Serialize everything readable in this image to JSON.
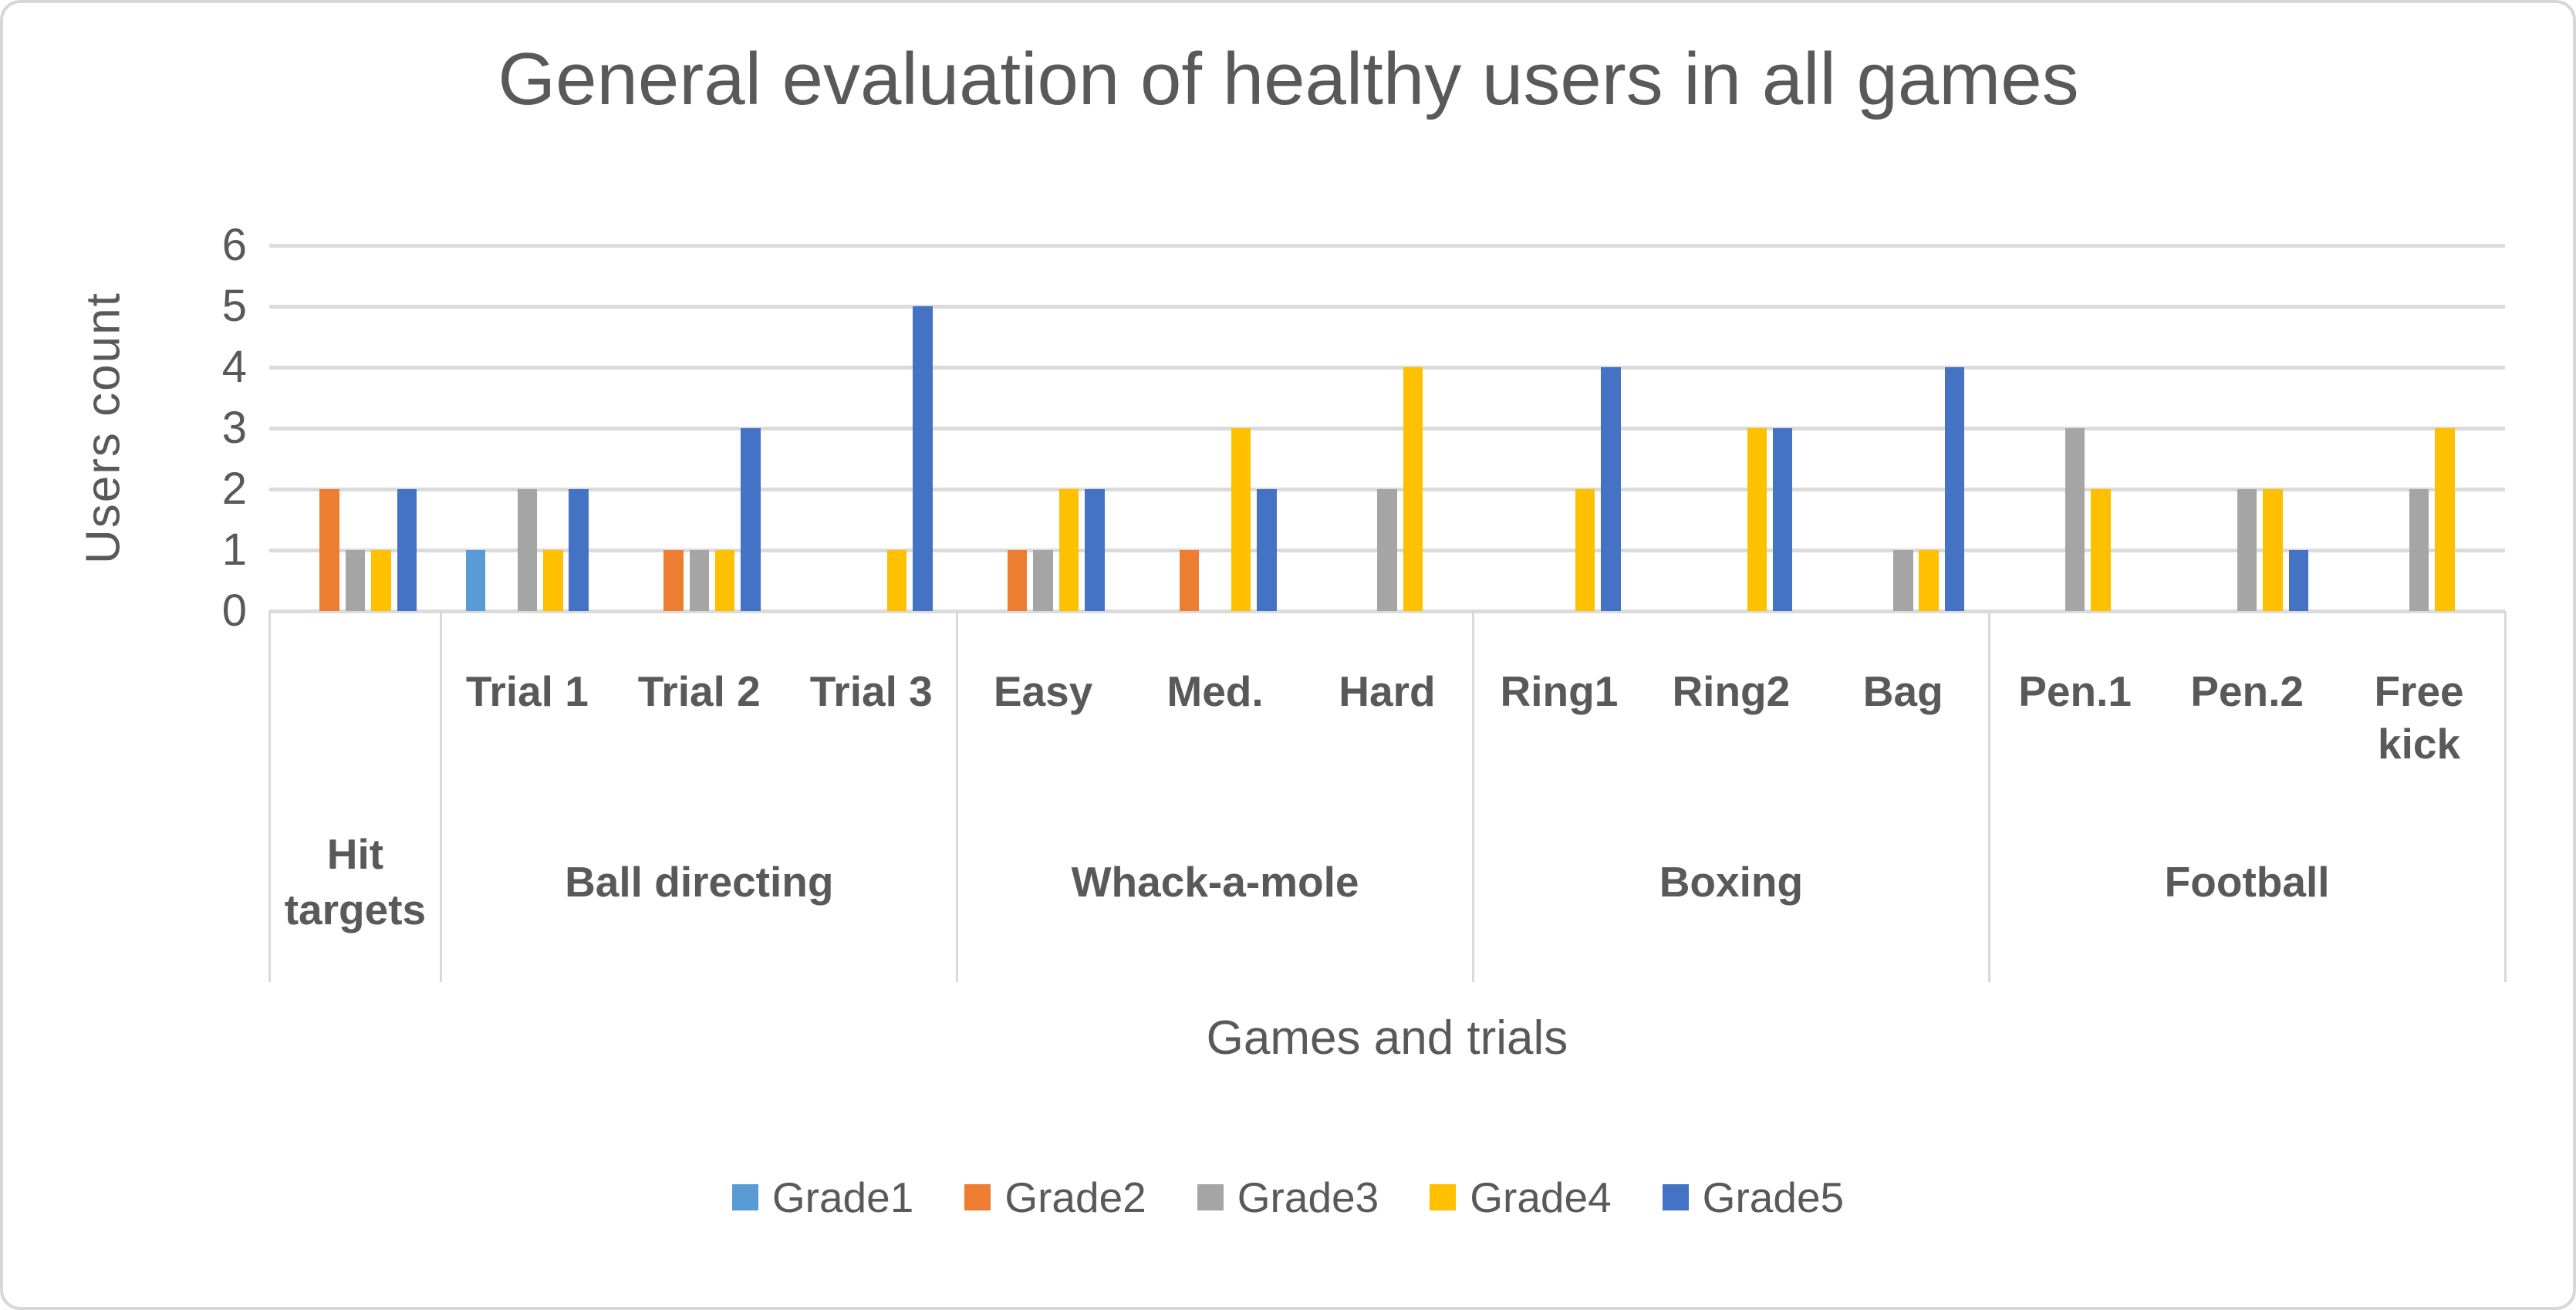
{
  "chart_data": {
    "type": "bar",
    "title": "General evaluation of healthy users in all games",
    "xlabel": "Games and trials",
    "ylabel": "Users count",
    "ylim": [
      0,
      6
    ],
    "yticks": [
      0,
      1,
      2,
      3,
      4,
      5,
      6
    ],
    "grid": true,
    "legend_position": "bottom",
    "groups": [
      {
        "label": "Hit targets",
        "trials": [
          ""
        ]
      },
      {
        "label": "Ball directing",
        "trials": [
          "Trial 1",
          "Trial 2",
          "Trial 3"
        ]
      },
      {
        "label": "Whack-a-mole",
        "trials": [
          "Easy",
          "Med.",
          "Hard"
        ]
      },
      {
        "label": "Boxing",
        "trials": [
          "Ring1",
          "Ring2",
          "Bag"
        ]
      },
      {
        "label": "Football",
        "trials": [
          "Pen.1",
          "Pen.2",
          "Free kick"
        ]
      }
    ],
    "categories": [
      "",
      "Trial 1",
      "Trial 2",
      "Trial 3",
      "Easy",
      "Med.",
      "Hard",
      "Ring1",
      "Ring2",
      "Bag",
      "Pen.1",
      "Pen.2",
      "Free kick"
    ],
    "series": [
      {
        "name": "Grade1",
        "color": "#5B9BD5",
        "values": [
          0,
          1,
          0,
          0,
          0,
          0,
          0,
          0,
          0,
          0,
          0,
          0,
          0
        ]
      },
      {
        "name": "Grade2",
        "color": "#ED7D31",
        "values": [
          2,
          0,
          1,
          0,
          1,
          1,
          0,
          0,
          0,
          0,
          0,
          0,
          0
        ]
      },
      {
        "name": "Grade3",
        "color": "#A5A5A5",
        "values": [
          1,
          2,
          1,
          0,
          1,
          0,
          2,
          0,
          0,
          1,
          3,
          2,
          2
        ]
      },
      {
        "name": "Grade4",
        "color": "#FFC000",
        "values": [
          1,
          1,
          1,
          1,
          2,
          3,
          4,
          2,
          3,
          1,
          2,
          2,
          3
        ]
      },
      {
        "name": "Grade5",
        "color": "#4472C4",
        "values": [
          2,
          2,
          3,
          5,
          2,
          2,
          0,
          4,
          3,
          4,
          0,
          1,
          0
        ]
      }
    ],
    "grid_color": "#DBDBDB",
    "divider_color": "#D9D9D9",
    "text_color": "#595959"
  }
}
